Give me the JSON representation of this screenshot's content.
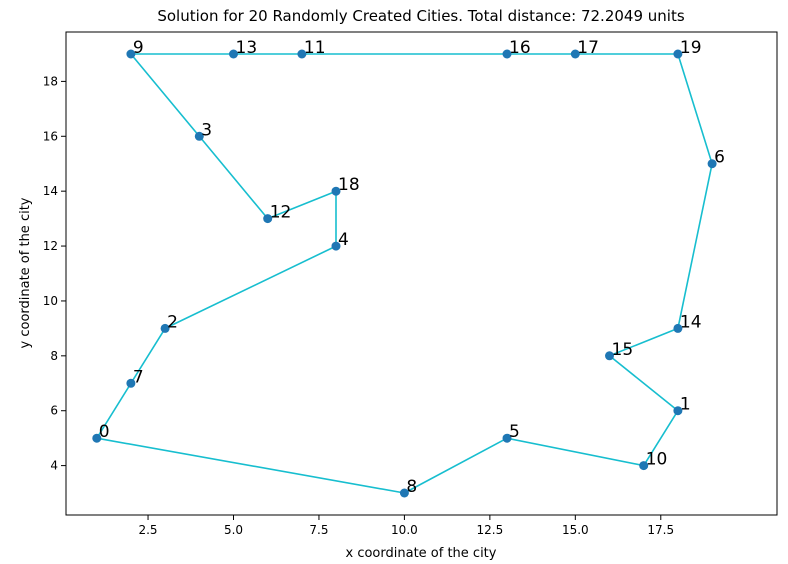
{
  "chart_data": {
    "type": "line",
    "title": "Solution for 20 Randomly Created Cities. Total distance: 72.2049 units",
    "xlabel": "x coordinate of the city",
    "ylabel": "y coordinate of the city",
    "xlim": [
      0.1,
      20.9
    ],
    "ylim": [
      2.2,
      19.8
    ],
    "xticks": [
      2.5,
      5.0,
      7.5,
      10.0,
      12.5,
      15.0,
      17.5
    ],
    "yticks": [
      4,
      6,
      8,
      10,
      12,
      14,
      16,
      18
    ],
    "grid": false,
    "line_color": "#17becf",
    "marker_color": "#1f77b4",
    "cities": [
      {
        "id": "0",
        "x": 1,
        "y": 5
      },
      {
        "id": "1",
        "x": 18,
        "y": 6
      },
      {
        "id": "2",
        "x": 3,
        "y": 9
      },
      {
        "id": "3",
        "x": 4,
        "y": 16
      },
      {
        "id": "4",
        "x": 8,
        "y": 12
      },
      {
        "id": "5",
        "x": 13,
        "y": 5
      },
      {
        "id": "6",
        "x": 19,
        "y": 15
      },
      {
        "id": "7",
        "x": 2,
        "y": 7
      },
      {
        "id": "8",
        "x": 10,
        "y": 3
      },
      {
        "id": "9",
        "x": 2,
        "y": 19
      },
      {
        "id": "10",
        "x": 17,
        "y": 4
      },
      {
        "id": "11",
        "x": 7,
        "y": 19
      },
      {
        "id": "12",
        "x": 6,
        "y": 13
      },
      {
        "id": "13",
        "x": 5,
        "y": 19
      },
      {
        "id": "14",
        "x": 18,
        "y": 9
      },
      {
        "id": "15",
        "x": 16,
        "y": 8
      },
      {
        "id": "16",
        "x": 13,
        "y": 19
      },
      {
        "id": "17",
        "x": 15,
        "y": 19
      },
      {
        "id": "18",
        "x": 8,
        "y": 14
      },
      {
        "id": "19",
        "x": 18,
        "y": 19
      }
    ],
    "route": [
      "0",
      "7",
      "2",
      "4",
      "18",
      "12",
      "3",
      "9",
      "13",
      "11",
      "16",
      "17",
      "19",
      "6",
      "14",
      "15",
      "1",
      "10",
      "5",
      "8",
      "0"
    ]
  }
}
